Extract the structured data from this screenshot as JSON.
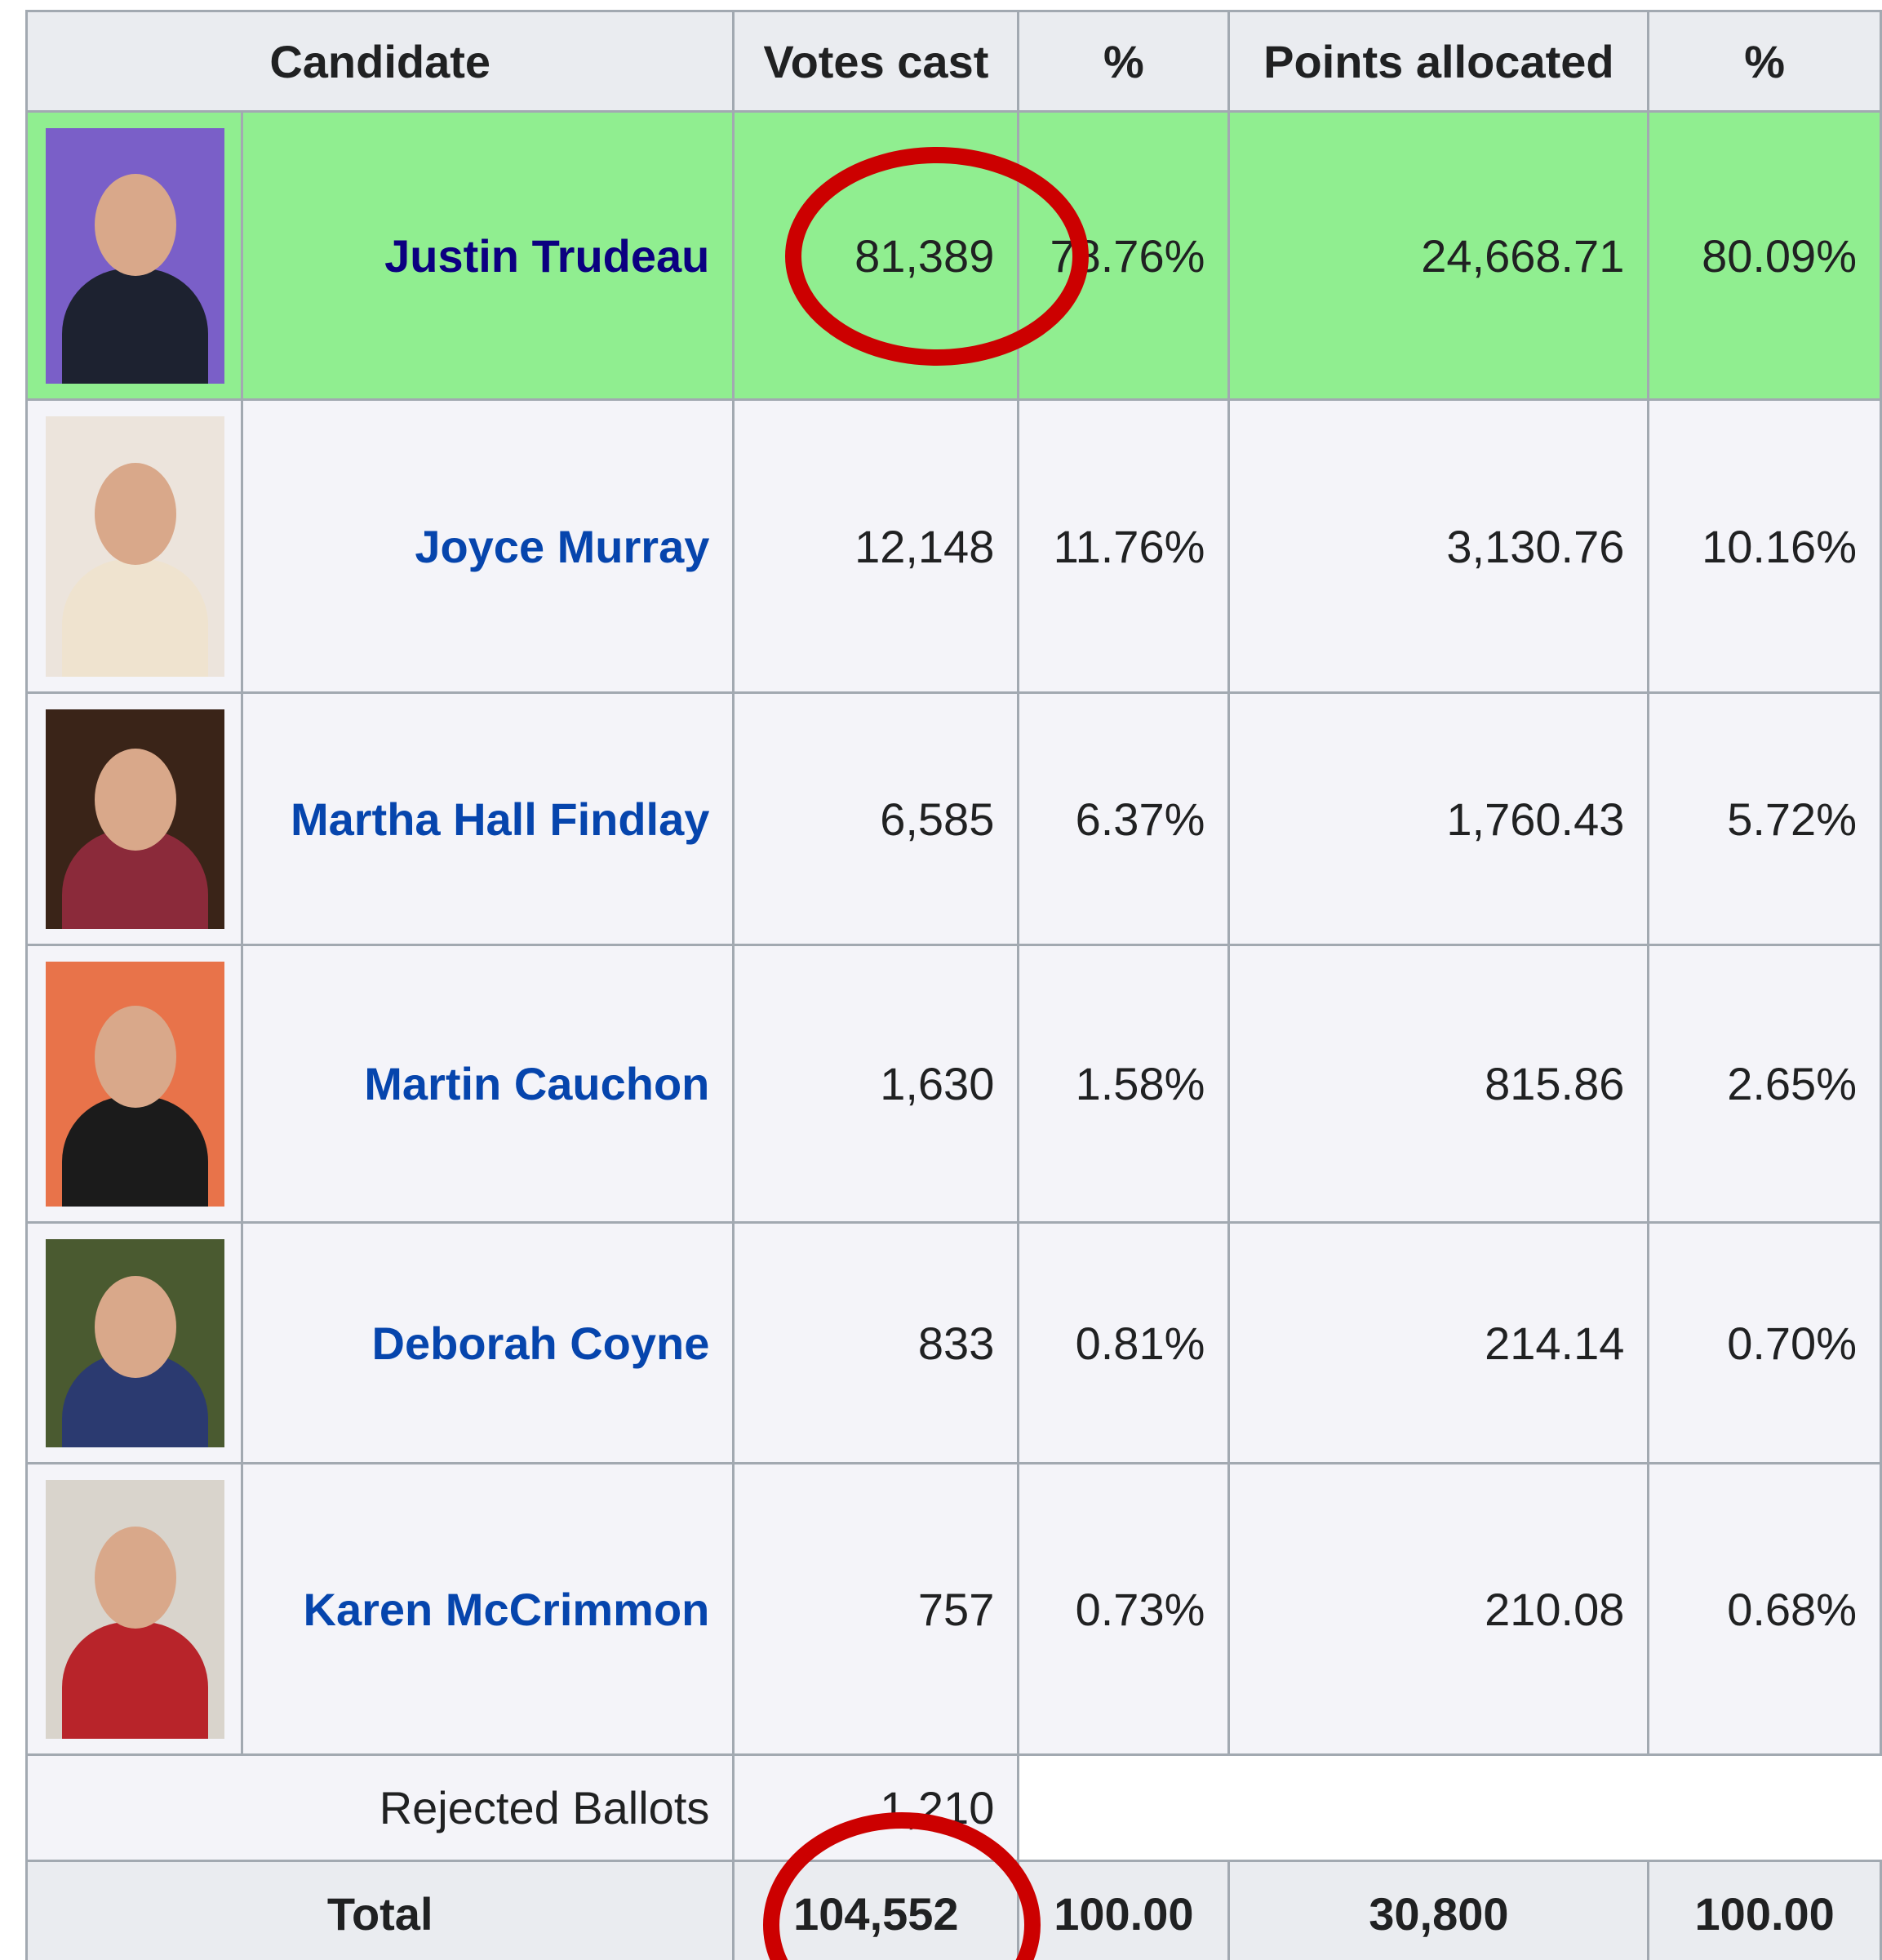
{
  "table": {
    "header": [
      "Candidate",
      "Votes cast",
      "%",
      "Points allocated",
      "%"
    ],
    "rows": [
      {
        "name": "Justin Trudeau",
        "votes": "81,389",
        "pct": "78.76%",
        "points": "24,668.71",
        "points_pct": "80.09%"
      },
      {
        "name": "Joyce Murray",
        "votes": "12,148",
        "pct": "11.76%",
        "points": "3,130.76",
        "points_pct": "10.16%"
      },
      {
        "name": "Martha Hall Findlay",
        "votes": "6,585",
        "pct": "6.37%",
        "points": "1,760.43",
        "points_pct": "5.72%"
      },
      {
        "name": "Martin Cauchon",
        "votes": "1,630",
        "pct": "1.58%",
        "points": "815.86",
        "points_pct": "2.65%"
      },
      {
        "name": "Deborah Coyne",
        "votes": "833",
        "pct": "0.81%",
        "points": "214.14",
        "points_pct": "0.70%"
      },
      {
        "name": "Karen McCrimmon",
        "votes": "757",
        "pct": "0.73%",
        "points": "210.08",
        "points_pct": "0.68%"
      }
    ],
    "rejected": {
      "label": "Rejected Ballots",
      "votes": "1,210"
    },
    "total": {
      "label": "Total",
      "votes": "104,552",
      "pct": "100.00",
      "points": "30,800",
      "points_pct": "100.00"
    }
  }
}
